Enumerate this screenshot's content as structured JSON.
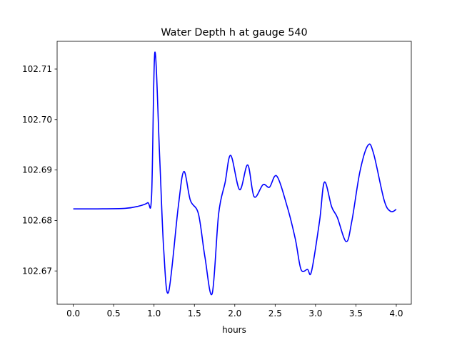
{
  "chart_data": {
    "type": "line",
    "title": "Water Depth h at gauge 540",
    "xlabel": "hours",
    "ylabel": "",
    "xlim": [
      -0.2,
      4.186
    ],
    "ylim": [
      102.6634,
      102.7155
    ],
    "xticks": [
      0.0,
      0.5,
      1.0,
      1.5,
      2.0,
      2.5,
      3.0,
      3.5,
      4.0
    ],
    "xtick_labels": [
      "0.0",
      "0.5",
      "1.0",
      "1.5",
      "2.0",
      "2.5",
      "3.0",
      "3.5",
      "4.0"
    ],
    "yticks": [
      102.67,
      102.68,
      102.69,
      102.7,
      102.71
    ],
    "ytick_labels": [
      "102.67",
      "102.68",
      "102.69",
      "102.70",
      "102.71"
    ],
    "grid": false,
    "series": [
      {
        "name": "h",
        "color": "#0000ff",
        "x": [
          0.0,
          0.3,
          0.64,
          0.8,
          0.92,
          0.97,
          1.01,
          1.07,
          1.12,
          1.18,
          1.3,
          1.37,
          1.45,
          1.55,
          1.63,
          1.72,
          1.8,
          1.88,
          1.95,
          2.06,
          2.16,
          2.24,
          2.35,
          2.43,
          2.52,
          2.65,
          2.75,
          2.82,
          2.9,
          2.95,
          3.05,
          3.11,
          3.2,
          3.27,
          3.38,
          3.45,
          3.55,
          3.65,
          3.72,
          3.85,
          3.93,
          4.0
        ],
        "y": [
          102.6823,
          102.6823,
          102.6824,
          102.6828,
          102.6835,
          102.685,
          102.7133,
          102.6925,
          102.6742,
          102.6658,
          102.6827,
          102.6897,
          102.684,
          102.6813,
          102.6728,
          102.6655,
          102.6813,
          102.6875,
          102.6929,
          102.6861,
          102.691,
          102.6847,
          102.6871,
          102.6866,
          102.6888,
          102.6827,
          102.6763,
          102.6703,
          102.6703,
          102.6699,
          102.6799,
          102.6876,
          102.6827,
          102.6806,
          102.6758,
          102.6799,
          102.6897,
          102.6949,
          102.6932,
          102.684,
          102.6818,
          102.6822
        ]
      }
    ]
  }
}
